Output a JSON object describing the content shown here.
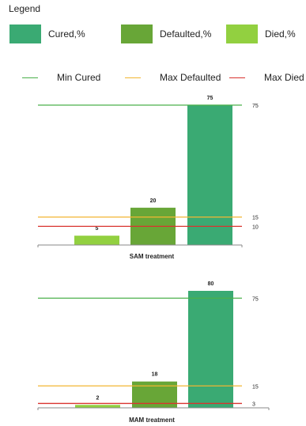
{
  "legend": {
    "title": "Legend",
    "bars": [
      {
        "label": "Cured,%",
        "color": "#3aaa73"
      },
      {
        "label": "Defaulted,%",
        "color": "#68a637"
      },
      {
        "label": "Died,%",
        "color": "#92d040"
      }
    ],
    "lines": [
      {
        "label": "Min Cured",
        "color": "#4bb04b"
      },
      {
        "label": "Max Defaulted",
        "color": "#f2b632"
      },
      {
        "label": "Max Died",
        "color": "#d9332f"
      }
    ]
  },
  "chart_data": [
    {
      "type": "bar",
      "title": "SAM treatment",
      "categories": [
        "Died,%",
        "Defaulted,%",
        "Cured,%"
      ],
      "values": [
        5,
        20,
        75
      ],
      "ylim": [
        0,
        75
      ],
      "grid": false,
      "colors": [
        "#92d040",
        "#68a637",
        "#3aaa73"
      ],
      "reference_lines": [
        {
          "name": "Min Cured",
          "value": 75,
          "label": "75",
          "color": "#4bb04b"
        },
        {
          "name": "Max Defaulted",
          "value": 15,
          "label": "15",
          "color": "#f2b632"
        },
        {
          "name": "Max Died",
          "value": 10,
          "label": "10",
          "color": "#d9332f"
        }
      ]
    },
    {
      "type": "bar",
      "title": "MAM treatment",
      "categories": [
        "Died,%",
        "Defaulted,%",
        "Cured,%"
      ],
      "values": [
        2,
        18,
        80
      ],
      "ylim": [
        0,
        80
      ],
      "grid": false,
      "colors": [
        "#92d040",
        "#68a637",
        "#3aaa73"
      ],
      "reference_lines": [
        {
          "name": "Min Cured",
          "value": 75,
          "label": "75",
          "color": "#4bb04b"
        },
        {
          "name": "Max Defaulted",
          "value": 15,
          "label": "15",
          "color": "#f2b632"
        },
        {
          "name": "Max Died",
          "value": 3,
          "label": "3",
          "color": "#d9332f"
        }
      ]
    }
  ]
}
